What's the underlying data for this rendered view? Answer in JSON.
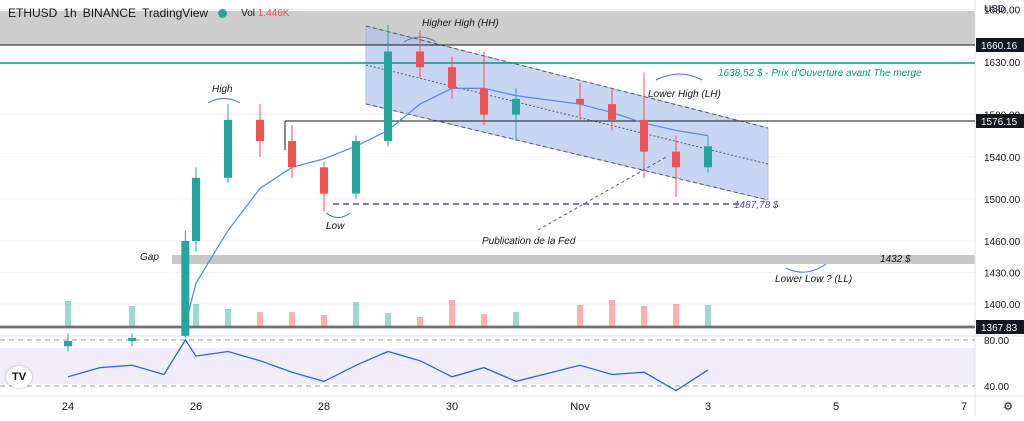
{
  "header": {
    "symbol": "ETHUSD",
    "interval": "1h",
    "exchange": "BINANCE",
    "source": "TradingView",
    "vol_label": "Vol",
    "vol_value": "1.446K"
  },
  "axis": {
    "currency": "USD",
    "price_ticks": [
      "1680.00",
      "1630.00",
      "1580.00",
      "1540.00",
      "1500.00",
      "1460.00",
      "1430.00",
      "1400.00"
    ],
    "time_ticks": [
      "24",
      "26",
      "28",
      "30",
      "Nov",
      "3",
      "5",
      "7"
    ],
    "rsi_ticks": [
      "80.00",
      "40.00"
    ],
    "price_tags": [
      "1660.16",
      "1576.15",
      "1367.83"
    ]
  },
  "annotations": {
    "hh": "Higher High (HH)",
    "high": "High",
    "low": "Low",
    "lh": "Lower High (LH)",
    "gap": "Gap",
    "fed": "Publication de la Fed",
    "merge": "1638,52 $ - Prix d'Ouverture avant The merge",
    "level_1487": "1487,78 $",
    "level_1432": "1432 $",
    "ll": "Lower Low ? (LL)"
  },
  "colors": {
    "up": "#26a69a",
    "down": "#ef5350",
    "ma": "#5b8def",
    "channel": "#b3c5ef",
    "rsi": "#2962ff",
    "zone": "#c8c8c8",
    "merge": "#089981"
  },
  "chart_data": {
    "type": "candlestick",
    "title": "",
    "series": [
      {
        "name": "ETHUSD",
        "points": [
          {
            "t": "Oct 24",
            "o": 1360,
            "h": 1372,
            "l": 1355,
            "c": 1365
          },
          {
            "t": "Oct 25",
            "o": 1365,
            "h": 1372,
            "l": 1360,
            "c": 1368
          },
          {
            "t": "Oct 25 20h",
            "o": 1370,
            "h": 1470,
            "l": 1368,
            "c": 1460
          },
          {
            "t": "Oct 26",
            "o": 1460,
            "h": 1530,
            "l": 1450,
            "c": 1520
          },
          {
            "t": "Oct 26 12h",
            "o": 1520,
            "h": 1590,
            "l": 1515,
            "c": 1575
          },
          {
            "t": "Oct 27",
            "o": 1575,
            "h": 1590,
            "l": 1540,
            "c": 1555
          },
          {
            "t": "Oct 27 12h",
            "o": 1555,
            "h": 1570,
            "l": 1520,
            "c": 1530
          },
          {
            "t": "Oct 28",
            "o": 1530,
            "h": 1535,
            "l": 1488,
            "c": 1505
          },
          {
            "t": "Oct 28 12h",
            "o": 1505,
            "h": 1560,
            "l": 1500,
            "c": 1555
          },
          {
            "t": "Oct 29",
            "o": 1555,
            "h": 1665,
            "l": 1550,
            "c": 1640
          },
          {
            "t": "Oct 29 12h",
            "o": 1640,
            "h": 1660,
            "l": 1615,
            "c": 1625
          },
          {
            "t": "Oct 30",
            "o": 1625,
            "h": 1635,
            "l": 1595,
            "c": 1605
          },
          {
            "t": "Oct 30 12h",
            "o": 1605,
            "h": 1640,
            "l": 1570,
            "c": 1580
          },
          {
            "t": "Oct 31",
            "o": 1580,
            "h": 1605,
            "l": 1555,
            "c": 1595
          },
          {
            "t": "Nov 1",
            "o": 1595,
            "h": 1610,
            "l": 1575,
            "c": 1590
          },
          {
            "t": "Nov 1 12h",
            "o": 1590,
            "h": 1605,
            "l": 1565,
            "c": 1575
          },
          {
            "t": "Nov 2",
            "o": 1575,
            "h": 1620,
            "l": 1520,
            "c": 1545
          },
          {
            "t": "Nov 2 12h",
            "o": 1545,
            "h": 1560,
            "l": 1502,
            "c": 1530
          },
          {
            "t": "Nov 3",
            "o": 1530,
            "h": 1560,
            "l": 1525,
            "c": 1550
          }
        ]
      }
    ],
    "moving_average": [
      {
        "t": "Oct 25 20h",
        "v": 1380
      },
      {
        "t": "Oct 26",
        "v": 1420
      },
      {
        "t": "Oct 26 12h",
        "v": 1470
      },
      {
        "t": "Oct 27",
        "v": 1510
      },
      {
        "t": "Oct 27 12h",
        "v": 1530
      },
      {
        "t": "Oct 28",
        "v": 1538
      },
      {
        "t": "Oct 28 12h",
        "v": 1550
      },
      {
        "t": "Oct 29",
        "v": 1565
      },
      {
        "t": "Oct 29 12h",
        "v": 1590
      },
      {
        "t": "Oct 30",
        "v": 1605
      },
      {
        "t": "Oct 30 12h",
        "v": 1605
      },
      {
        "t": "Oct 31",
        "v": 1598
      },
      {
        "t": "Nov 1",
        "v": 1590
      },
      {
        "t": "Nov 1 12h",
        "v": 1582
      },
      {
        "t": "Nov 2",
        "v": 1572
      },
      {
        "t": "Nov 2 12h",
        "v": 1565
      },
      {
        "t": "Nov 3",
        "v": 1560
      }
    ],
    "rsi": [
      {
        "t": "Oct 24",
        "v": 48
      },
      {
        "t": "Oct 24 12h",
        "v": 56
      },
      {
        "t": "Oct 25",
        "v": 58
      },
      {
        "t": "Oct 25 12h",
        "v": 50
      },
      {
        "t": "Oct 25 20h",
        "v": 80
      },
      {
        "t": "Oct 26",
        "v": 66
      },
      {
        "t": "Oct 26 12h",
        "v": 70
      },
      {
        "t": "Oct 27",
        "v": 62
      },
      {
        "t": "Oct 27 12h",
        "v": 52
      },
      {
        "t": "Oct 28",
        "v": 44
      },
      {
        "t": "Oct 28 12h",
        "v": 58
      },
      {
        "t": "Oct 29",
        "v": 70
      },
      {
        "t": "Oct 29 12h",
        "v": 62
      },
      {
        "t": "Oct 30",
        "v": 48
      },
      {
        "t": "Oct 30 12h",
        "v": 56
      },
      {
        "t": "Oct 31",
        "v": 44
      },
      {
        "t": "Nov 1",
        "v": 58
      },
      {
        "t": "Nov 1 12h",
        "v": 50
      },
      {
        "t": "Nov 2",
        "v": 52
      },
      {
        "t": "Nov 2 12h",
        "v": 36
      },
      {
        "t": "Nov 3",
        "v": 54
      }
    ],
    "levels": [
      {
        "label": "1660.16",
        "value": 1660.16
      },
      {
        "label": "1638,52 $ - Prix d'Ouverture avant The merge",
        "value": 1638.52
      },
      {
        "label": "1576.15",
        "value": 1576.15
      },
      {
        "label": "1487,78 $",
        "value": 1487.78
      },
      {
        "label": "1432 $",
        "value": 1432
      },
      {
        "label": "1367.83",
        "value": 1367.83
      }
    ],
    "xlabel": "",
    "ylabel": "USD",
    "x_ticks": [
      "24",
      "26",
      "28",
      "30",
      "Nov",
      "3",
      "5",
      "7"
    ],
    "ylim": [
      1365,
      1700
    ],
    "rsi_ylim": [
      25,
      95
    ],
    "grid": true
  }
}
